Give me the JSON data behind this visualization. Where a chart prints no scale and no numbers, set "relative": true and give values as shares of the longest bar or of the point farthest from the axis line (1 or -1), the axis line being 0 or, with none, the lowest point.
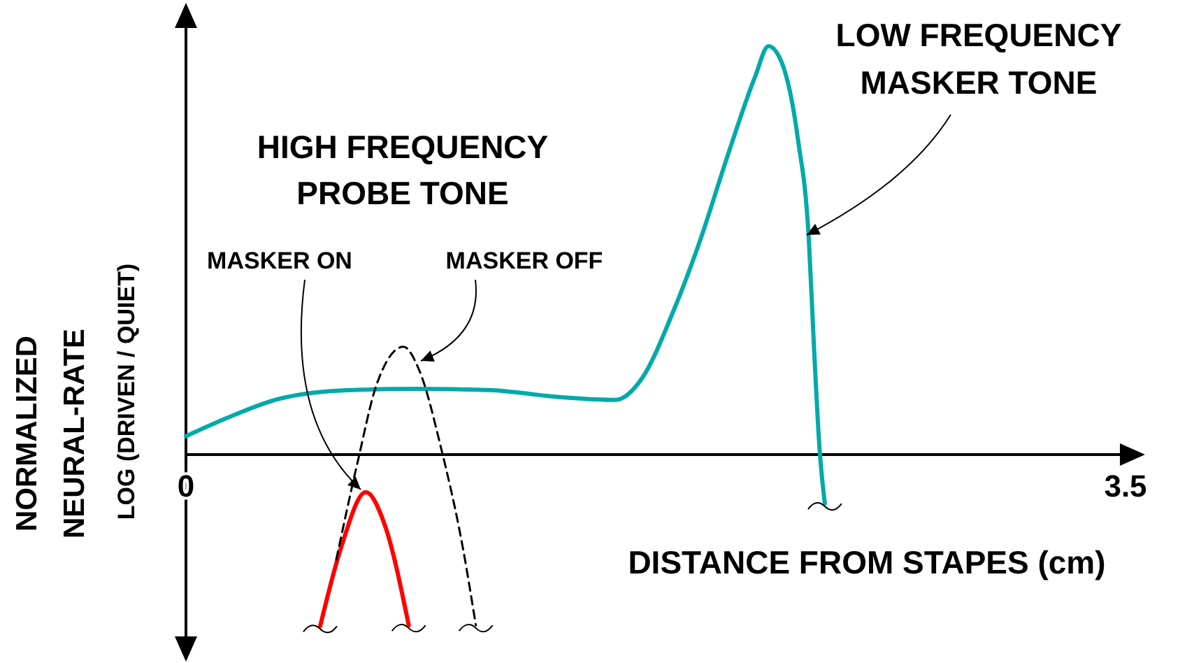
{
  "chart_data": {
    "type": "line",
    "relative": true,
    "xlabel": "DISTANCE FROM STAPES (cm)",
    "ylabel": "NORMALIZED\nNEURAL-RATE\nLOG (DRIVEN / QUIET)",
    "xlim": [
      0,
      3.5
    ],
    "xticks": [
      0,
      3.5
    ],
    "annotations": [
      "HIGH FREQUENCY\nPROBE TONE"
    ],
    "series": [
      {
        "name": "LOW FREQUENCY\nMASKER TONE",
        "color": "#00aaaa",
        "x": [
          0,
          0.14,
          0.35,
          0.61,
          0.87,
          1.13,
          1.39,
          1.6,
          1.7,
          1.81,
          1.91,
          2.02,
          2.12,
          2.17,
          2.22,
          2.28,
          2.32,
          2.34,
          2.36,
          2.38
        ],
        "values": [
          0.045,
          0.086,
          0.137,
          0.158,
          0.161,
          0.158,
          0.141,
          0.134,
          0.188,
          0.342,
          0.514,
          0.736,
          0.925,
          1,
          0.959,
          0.771,
          0.531,
          0.257,
          0.017,
          -0.12
        ]
      },
      {
        "name": "MASKER ON",
        "color": "#ff0000",
        "x": [
          0.5,
          0.58,
          0.67,
          0.74,
          0.83
        ],
        "values": [
          -0.42,
          -0.223,
          -0.092,
          -0.171,
          -0.418
        ]
      },
      {
        "name": "MASKER OFF",
        "color": "#000000",
        "line_style": "dashed",
        "x": [
          0.56,
          0.64,
          0.71,
          0.81,
          0.87,
          0.95,
          1.03,
          1.08
        ],
        "values": [
          -0.257,
          -0.017,
          0.171,
          0.264,
          0.205,
          0.017,
          -0.223,
          -0.418
        ]
      }
    ]
  }
}
